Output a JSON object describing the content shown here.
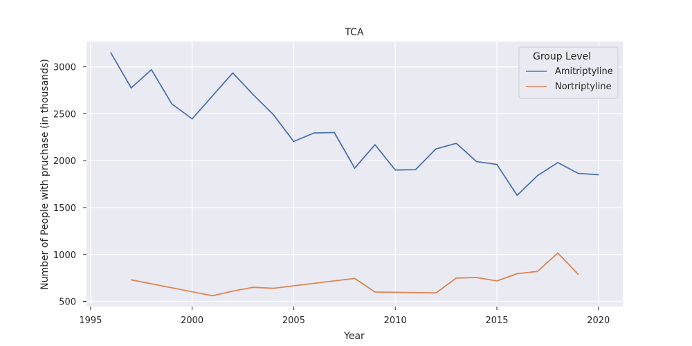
{
  "chart_data": {
    "type": "line",
    "title": "TCA",
    "xlabel": "Year",
    "ylabel": "Number of People with pruchase (in thousands)",
    "xlim": [
      1994.8,
      2021.2
    ],
    "ylim": [
      445,
      3270
    ],
    "xticks": [
      1995,
      2000,
      2005,
      2010,
      2015,
      2020
    ],
    "yticks": [
      500,
      1000,
      1500,
      2000,
      2500,
      3000
    ],
    "grid": true,
    "legend": {
      "title": "Group Level",
      "placement": "top-right"
    },
    "series": [
      {
        "name": "Amitriptyline",
        "color": "#4c72b0",
        "points": [
          [
            1996,
            3150
          ],
          [
            1997,
            2775
          ],
          [
            1998,
            2970
          ],
          [
            1999,
            2605
          ],
          [
            2000,
            2445
          ],
          [
            2001,
            2690
          ],
          [
            2002,
            2935
          ],
          [
            2003,
            2705
          ],
          [
            2004,
            2490
          ],
          [
            2005,
            2205
          ],
          [
            2006,
            2295
          ],
          [
            2007,
            2300
          ],
          [
            2008,
            1920
          ],
          [
            2009,
            2170
          ],
          [
            2010,
            1900
          ],
          [
            2011,
            1905
          ],
          [
            2012,
            2125
          ],
          [
            2013,
            2185
          ],
          [
            2014,
            1990
          ],
          [
            2015,
            1960
          ],
          [
            2016,
            1630
          ],
          [
            2017,
            1840
          ],
          [
            2018,
            1980
          ],
          [
            2019,
            1865
          ],
          [
            2020,
            1850
          ]
        ]
      },
      {
        "name": "Nortriptyline",
        "color": "#dd8452",
        "points": [
          [
            1997,
            730
          ],
          [
            2001,
            560
          ],
          [
            2002,
            610
          ],
          [
            2003,
            650
          ],
          [
            2004,
            640
          ],
          [
            2008,
            745
          ],
          [
            2009,
            600
          ],
          [
            2012,
            590
          ],
          [
            2013,
            748
          ],
          [
            2014,
            755
          ],
          [
            2015,
            718
          ],
          [
            2016,
            795
          ],
          [
            2017,
            820
          ],
          [
            2018,
            1015
          ],
          [
            2019,
            790
          ]
        ]
      }
    ]
  }
}
